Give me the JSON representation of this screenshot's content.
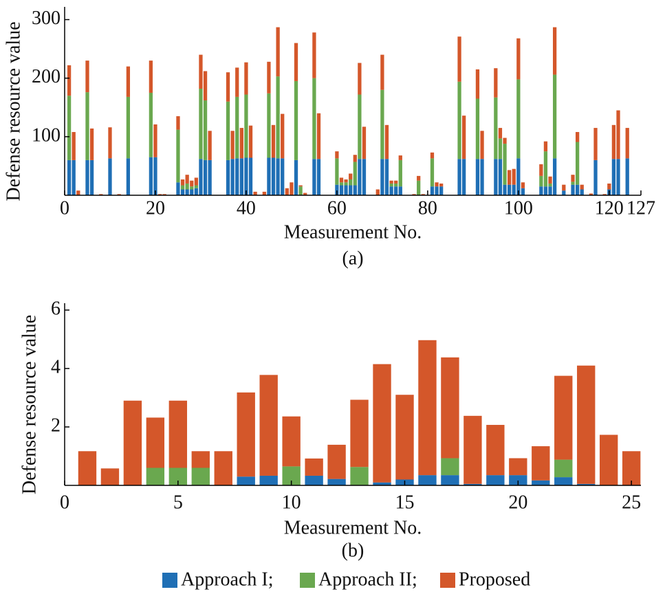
{
  "chart_data": [
    {
      "type": "stacked_bar",
      "caption": "(a)",
      "xlabel": "Measurement No.",
      "ylabel": "Defense resource value",
      "x": [
        1,
        2,
        3,
        4,
        5,
        6,
        7,
        8,
        9,
        10,
        11,
        12,
        13,
        14,
        15,
        16,
        17,
        18,
        19,
        20,
        21,
        22,
        23,
        24,
        25,
        26,
        27,
        28,
        29,
        30,
        31,
        32,
        33,
        34,
        35,
        36,
        37,
        38,
        39,
        40,
        41,
        42,
        43,
        44,
        45,
        46,
        47,
        48,
        49,
        50,
        51,
        52,
        53,
        54,
        55,
        56,
        57,
        58,
        59,
        60,
        61,
        62,
        63,
        64,
        65,
        66,
        67,
        68,
        69,
        70,
        71,
        72,
        73,
        74,
        75,
        76,
        77,
        78,
        79,
        80,
        81,
        82,
        83,
        84,
        85,
        86,
        87,
        88,
        89,
        90,
        91,
        92,
        93,
        94,
        95,
        96,
        97,
        98,
        99,
        100,
        101,
        102,
        103,
        104,
        105,
        106,
        107,
        108,
        109,
        110,
        111,
        112,
        113,
        114,
        115,
        116,
        117,
        118,
        119,
        120,
        121,
        122,
        123,
        124,
        125,
        126
      ],
      "xlim": [
        0,
        127
      ],
      "xticks": [
        0,
        20,
        40,
        60,
        80,
        100,
        120,
        127
      ],
      "ylim": [
        0,
        310
      ],
      "yticks": [
        100,
        200,
        300
      ],
      "series": [
        {
          "name": "Approach I;",
          "color": "#1f6fb5",
          "values": [
            60,
            60,
            0,
            0,
            60,
            60,
            0,
            0,
            0,
            63,
            0,
            0,
            0,
            63,
            0,
            0,
            0,
            0,
            65,
            65,
            0,
            0,
            0,
            0,
            22,
            10,
            10,
            10,
            12,
            62,
            60,
            60,
            0,
            0,
            0,
            60,
            62,
            63,
            63,
            64,
            64,
            0,
            0,
            0,
            64,
            64,
            63,
            63,
            0,
            0,
            60,
            0,
            0,
            0,
            62,
            62,
            0,
            0,
            0,
            18,
            17,
            17,
            17,
            17,
            62,
            62,
            0,
            0,
            0,
            62,
            62,
            15,
            15,
            15,
            0,
            0,
            0,
            0,
            0,
            0,
            15,
            15,
            15,
            0,
            0,
            0,
            62,
            62,
            0,
            0,
            62,
            62,
            0,
            0,
            62,
            62,
            18,
            18,
            18,
            63,
            12,
            0,
            0,
            0,
            15,
            15,
            15,
            63,
            0,
            8,
            0,
            18,
            18,
            10,
            0,
            0,
            60,
            0,
            0,
            10,
            62,
            62,
            0,
            63,
            0,
            0
          ]
        },
        {
          "name": "Approach II;",
          "color": "#6aa84f",
          "values": [
            110,
            0,
            0,
            0,
            116,
            0,
            0,
            0,
            0,
            0,
            0,
            0,
            0,
            105,
            0,
            0,
            0,
            0,
            110,
            0,
            0,
            0,
            0,
            0,
            90,
            7,
            10,
            5,
            5,
            120,
            102,
            0,
            0,
            0,
            0,
            100,
            0,
            105,
            0,
            108,
            0,
            0,
            0,
            0,
            110,
            0,
            140,
            0,
            0,
            0,
            135,
            15,
            0,
            0,
            138,
            0,
            0,
            0,
            0,
            45,
            5,
            5,
            10,
            40,
            110,
            0,
            0,
            0,
            0,
            118,
            0,
            5,
            5,
            45,
            0,
            0,
            0,
            25,
            0,
            0,
            48,
            0,
            0,
            0,
            0,
            0,
            132,
            0,
            0,
            0,
            103,
            0,
            0,
            0,
            105,
            35,
            70,
            0,
            0,
            135,
            0,
            0,
            0,
            0,
            18,
            60,
            5,
            143,
            0,
            0,
            0,
            5,
            73,
            0,
            0,
            0,
            0,
            0,
            0,
            0,
            0,
            0,
            0,
            0,
            0,
            0
          ]
        },
        {
          "name": "Proposed",
          "color": "#d4572a",
          "values": [
            52,
            48,
            8,
            0,
            54,
            54,
            0,
            2,
            0,
            53,
            0,
            2,
            0,
            52,
            0,
            0,
            0,
            0,
            55,
            56,
            2,
            2,
            0,
            0,
            23,
            10,
            15,
            10,
            13,
            58,
            50,
            50,
            0,
            0,
            0,
            50,
            48,
            50,
            52,
            55,
            55,
            6,
            0,
            6,
            54,
            56,
            84,
            76,
            12,
            22,
            65,
            2,
            4,
            0,
            78,
            78,
            0,
            0,
            0,
            12,
            8,
            5,
            10,
            12,
            54,
            55,
            0,
            0,
            10,
            60,
            58,
            5,
            5,
            8,
            0,
            0,
            2,
            8,
            2,
            0,
            10,
            7,
            5,
            0,
            0,
            0,
            77,
            74,
            0,
            0,
            50,
            48,
            0,
            0,
            50,
            18,
            10,
            25,
            27,
            70,
            10,
            0,
            0,
            0,
            20,
            17,
            12,
            81,
            0,
            10,
            0,
            12,
            17,
            8,
            0,
            3,
            55,
            0,
            2,
            10,
            58,
            83,
            0,
            52,
            0,
            0
          ]
        }
      ]
    },
    {
      "type": "stacked_bar",
      "caption": "(b)",
      "xlabel": "Measurement No.",
      "ylabel": "Defense resource value",
      "x": [
        1,
        2,
        3,
        4,
        5,
        6,
        7,
        8,
        9,
        10,
        11,
        12,
        13,
        14,
        15,
        16,
        17,
        18,
        19,
        20,
        21,
        22,
        23,
        24,
        25
      ],
      "xlim": [
        0,
        25.42
      ],
      "xticks": [
        0,
        5,
        10,
        15,
        20,
        25
      ],
      "ylim": [
        0,
        6
      ],
      "yticks": [
        2,
        4,
        6
      ],
      "series": [
        {
          "name": "Approach I;",
          "color": "#1f6fb5",
          "values": [
            0,
            0,
            0,
            0,
            0,
            0,
            0,
            0.3,
            0.33,
            0,
            0.33,
            0.22,
            0,
            0.1,
            0.2,
            0.35,
            0.35,
            0.05,
            0.35,
            0.35,
            0.17,
            0.28,
            0.05,
            0,
            0
          ]
        },
        {
          "name": "Approach II;",
          "color": "#6aa84f",
          "values": [
            0,
            0,
            0,
            0.6,
            0.6,
            0.6,
            0,
            0,
            0,
            0.65,
            0,
            0,
            0.63,
            0,
            0,
            0,
            0.58,
            0,
            0,
            0,
            0,
            0.6,
            0,
            0,
            0
          ]
        },
        {
          "name": "Proposed",
          "color": "#d4572a",
          "values": [
            1.17,
            0.58,
            2.9,
            1.72,
            2.3,
            0.57,
            1.17,
            2.88,
            3.45,
            1.71,
            0.59,
            1.17,
            2.3,
            4.05,
            2.9,
            4.62,
            3.45,
            2.33,
            1.72,
            0.58,
            1.17,
            2.87,
            4.05,
            1.73,
            1.17
          ]
        }
      ]
    }
  ]
}
